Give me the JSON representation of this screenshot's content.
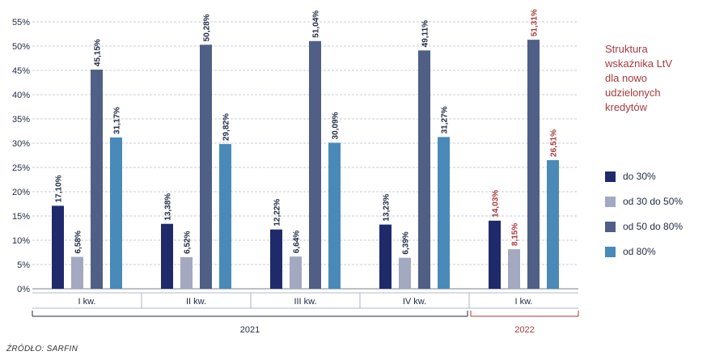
{
  "chart_data": {
    "type": "bar",
    "categories": [
      "I kw.",
      "II kw.",
      "III kw.",
      "IV kw.",
      "I kw."
    ],
    "years": [
      {
        "label": "2021",
        "categories": [
          0,
          1,
          2,
          3
        ],
        "color": "#1f2a44"
      },
      {
        "label": "2022",
        "categories": [
          4
        ],
        "color": "#a83a3a"
      }
    ],
    "series": [
      {
        "name": "do 30%",
        "color": "#1f2a6b",
        "values": [
          17.1,
          13.38,
          12.22,
          13.23,
          14.03
        ]
      },
      {
        "name": "od 30 do 50%",
        "color": "#a3a9c0",
        "values": [
          6.58,
          6.52,
          6.64,
          6.39,
          8.15
        ]
      },
      {
        "name": "od 50 do 80%",
        "color": "#4f5f86",
        "values": [
          45.15,
          50.28,
          51.04,
          49.11,
          51.31
        ]
      },
      {
        "name": "od 80%",
        "color": "#4a8ab8",
        "values": [
          31.17,
          29.82,
          30.09,
          31.27,
          26.51
        ]
      }
    ],
    "value_labels": [
      [
        "17,10%",
        "13,38%",
        "12,22%",
        "13,23%",
        "14,03%"
      ],
      [
        "6,58%",
        "6,52%",
        "6,64%",
        "6,39%",
        "8,15%"
      ],
      [
        "45,15%",
        "50,28%",
        "51,04%",
        "49,11%",
        "51,31%"
      ],
      [
        "31,17%",
        "29,82%",
        "30,09%",
        "31,27%",
        "26,51%"
      ]
    ],
    "highlight_category": 4,
    "highlight_label_color": "#a83a3a",
    "ylim": [
      0,
      55
    ],
    "yticks": [
      0,
      5,
      10,
      15,
      20,
      25,
      30,
      35,
      40,
      45,
      50,
      55
    ],
    "ytick_labels": [
      "0%",
      "5%",
      "10%",
      "15%",
      "20%",
      "25%",
      "30%",
      "35%",
      "40%",
      "45%",
      "50%",
      "55%"
    ],
    "grid": true,
    "legend_position": "right"
  },
  "legend_title_lines": [
    "Struktura",
    "wskaźnika LtV",
    "dla nowo",
    "udzielonych",
    "kredytów"
  ],
  "legend_items": [
    {
      "label": "do 30%",
      "color": "#1f2a6b"
    },
    {
      "label": "od 30 do 50%",
      "color": "#a3a9c0"
    },
    {
      "label": "od 50 do 80%",
      "color": "#4f5f86"
    },
    {
      "label": "od 80%",
      "color": "#4a8ab8"
    }
  ],
  "source": "ŹRÓDŁO: SARFIN"
}
